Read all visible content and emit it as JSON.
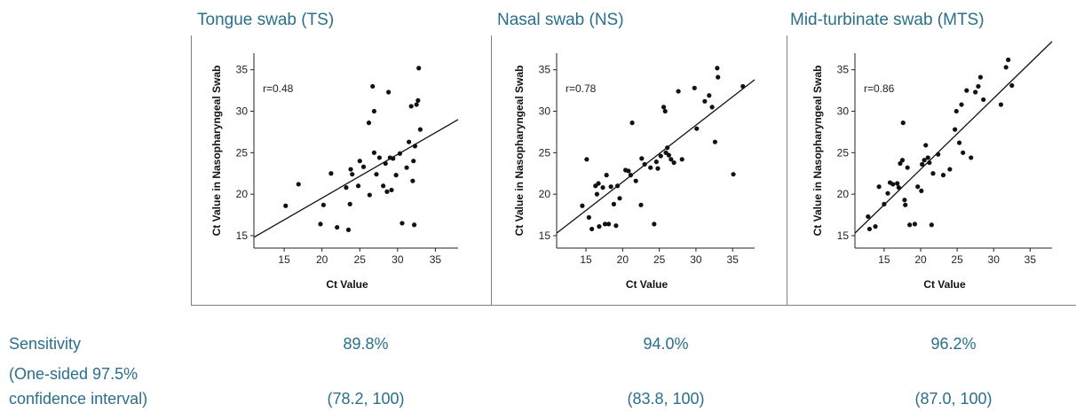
{
  "panels": [
    {
      "title": "Tongue swab (TS)"
    },
    {
      "title": "Nasal swab (NS)"
    },
    {
      "title": "Mid-turbinate swab (MTS)"
    }
  ],
  "rows": {
    "sensitivity_label": "Sensitivity",
    "ci_label_line1": "(One-sided 97.5%",
    "ci_label_line2": "confidence interval)"
  },
  "stats": [
    {
      "sensitivity": "89.8%",
      "ci": "(78.2, 100)"
    },
    {
      "sensitivity": "94.0%",
      "ci": "(83.8, 100)"
    },
    {
      "sensitivity": "96.2%",
      "ci": "(87.0, 100)"
    }
  ],
  "chart_data": [
    {
      "type": "scatter",
      "title": "Tongue swab (TS)",
      "xlabel": "Ct Value",
      "ylabel": "Ct Value in Nasopharyngeal Swab",
      "annotation": "r=0.48",
      "xlim": [
        11,
        38
      ],
      "ylim": [
        13.5,
        37
      ],
      "xticks": [
        15,
        20,
        25,
        30,
        35
      ],
      "yticks": [
        15,
        20,
        25,
        30,
        35
      ],
      "fit_line": [
        [
          11,
          14.8
        ],
        [
          38,
          29.0
        ]
      ],
      "points": [
        [
          15.2,
          18.6
        ],
        [
          16.9,
          21.2
        ],
        [
          19.8,
          16.4
        ],
        [
          20.2,
          18.7
        ],
        [
          21.2,
          22.5
        ],
        [
          22.0,
          16.0
        ],
        [
          23.5,
          15.7
        ],
        [
          23.2,
          20.8
        ],
        [
          23.7,
          18.8
        ],
        [
          23.8,
          23.0
        ],
        [
          24.0,
          22.4
        ],
        [
          24.8,
          21.0
        ],
        [
          25.0,
          24.0
        ],
        [
          25.5,
          23.3
        ],
        [
          26.2,
          28.6
        ],
        [
          26.3,
          19.9
        ],
        [
          26.7,
          33.0
        ],
        [
          26.9,
          30.0
        ],
        [
          26.9,
          25.0
        ],
        [
          27.2,
          22.4
        ],
        [
          27.6,
          24.4
        ],
        [
          28.1,
          21.0
        ],
        [
          28.4,
          23.7
        ],
        [
          28.6,
          20.3
        ],
        [
          28.8,
          32.3
        ],
        [
          29.0,
          24.4
        ],
        [
          29.2,
          20.5
        ],
        [
          29.4,
          24.3
        ],
        [
          29.8,
          22.3
        ],
        [
          30.3,
          24.9
        ],
        [
          30.6,
          16.5
        ],
        [
          31.2,
          23.2
        ],
        [
          31.5,
          26.3
        ],
        [
          31.8,
          30.6
        ],
        [
          32.0,
          21.6
        ],
        [
          32.1,
          24.0
        ],
        [
          32.2,
          16.3
        ],
        [
          32.3,
          25.8
        ],
        [
          32.5,
          30.8
        ],
        [
          32.7,
          31.3
        ],
        [
          32.8,
          35.2
        ],
        [
          33.0,
          27.8
        ]
      ]
    },
    {
      "type": "scatter",
      "title": "Nasal swab (NS)",
      "xlabel": "Ct Value",
      "ylabel": "Ct Value in Nasopharyngeal Swab",
      "annotation": "r=0.78",
      "xlim": [
        11,
        38
      ],
      "ylim": [
        13.5,
        37
      ],
      "xticks": [
        15,
        20,
        25,
        30,
        35
      ],
      "yticks": [
        15,
        20,
        25,
        30,
        35
      ],
      "fit_line": [
        [
          11,
          15.3
        ],
        [
          38,
          33.8
        ]
      ],
      "points": [
        [
          14.5,
          18.6
        ],
        [
          15.1,
          24.2
        ],
        [
          15.4,
          17.2
        ],
        [
          15.8,
          15.8
        ],
        [
          16.3,
          21.0
        ],
        [
          16.5,
          20.0
        ],
        [
          16.7,
          21.3
        ],
        [
          16.8,
          16.1
        ],
        [
          17.3,
          20.8
        ],
        [
          17.6,
          16.4
        ],
        [
          17.8,
          22.3
        ],
        [
          18.1,
          16.4
        ],
        [
          18.4,
          20.9
        ],
        [
          18.8,
          18.8
        ],
        [
          19.1,
          16.2
        ],
        [
          19.3,
          21.0
        ],
        [
          19.6,
          19.5
        ],
        [
          20.4,
          22.9
        ],
        [
          20.8,
          22.8
        ],
        [
          21.1,
          22.3
        ],
        [
          21.3,
          28.6
        ],
        [
          21.8,
          21.6
        ],
        [
          22.5,
          18.7
        ],
        [
          22.6,
          24.3
        ],
        [
          23.0,
          23.6
        ],
        [
          23.8,
          23.2
        ],
        [
          24.3,
          16.4
        ],
        [
          24.6,
          23.9
        ],
        [
          24.8,
          23.1
        ],
        [
          25.2,
          24.6
        ],
        [
          25.6,
          30.5
        ],
        [
          25.8,
          30.0
        ],
        [
          25.9,
          25.0
        ],
        [
          26.1,
          25.6
        ],
        [
          26.3,
          24.7
        ],
        [
          26.6,
          24.2
        ],
        [
          27.0,
          23.8
        ],
        [
          27.6,
          32.4
        ],
        [
          28.1,
          24.2
        ],
        [
          29.8,
          32.8
        ],
        [
          30.1,
          27.9
        ],
        [
          31.2,
          31.2
        ],
        [
          31.8,
          31.9
        ],
        [
          32.2,
          30.5
        ],
        [
          32.6,
          26.3
        ],
        [
          32.9,
          35.2
        ],
        [
          33.0,
          34.1
        ],
        [
          35.1,
          22.4
        ],
        [
          36.4,
          33.0
        ]
      ]
    },
    {
      "type": "scatter",
      "title": "Mid-turbinate swab (MTS)",
      "xlabel": "Ct Value",
      "ylabel": "Ct Value in Nasopharyngeal Swab",
      "annotation": "r=0.86",
      "xlim": [
        11,
        38
      ],
      "ylim": [
        13.5,
        37
      ],
      "xticks": [
        15,
        20,
        25,
        30,
        35
      ],
      "yticks": [
        15,
        20,
        25,
        30,
        35
      ],
      "fit_line": [
        [
          11,
          15.3
        ],
        [
          38,
          38.4
        ]
      ],
      "points": [
        [
          12.8,
          17.3
        ],
        [
          13.0,
          15.8
        ],
        [
          13.8,
          16.1
        ],
        [
          14.3,
          20.9
        ],
        [
          15.0,
          18.8
        ],
        [
          15.5,
          20.1
        ],
        [
          15.8,
          21.4
        ],
        [
          16.2,
          21.2
        ],
        [
          16.8,
          21.3
        ],
        [
          17.0,
          20.8
        ],
        [
          17.2,
          23.7
        ],
        [
          17.5,
          24.1
        ],
        [
          17.6,
          28.6
        ],
        [
          17.8,
          19.3
        ],
        [
          17.9,
          18.7
        ],
        [
          18.2,
          23.2
        ],
        [
          18.5,
          16.3
        ],
        [
          19.2,
          16.4
        ],
        [
          19.6,
          20.9
        ],
        [
          20.1,
          20.4
        ],
        [
          20.2,
          23.6
        ],
        [
          20.5,
          24.1
        ],
        [
          20.7,
          25.9
        ],
        [
          21.0,
          24.4
        ],
        [
          21.2,
          23.8
        ],
        [
          21.5,
          16.3
        ],
        [
          21.7,
          22.5
        ],
        [
          22.4,
          24.8
        ],
        [
          23.1,
          22.3
        ],
        [
          24.0,
          23.0
        ],
        [
          24.7,
          27.8
        ],
        [
          24.9,
          30.0
        ],
        [
          25.3,
          26.2
        ],
        [
          25.6,
          30.8
        ],
        [
          25.8,
          25.0
        ],
        [
          26.3,
          32.5
        ],
        [
          26.9,
          24.4
        ],
        [
          27.5,
          32.3
        ],
        [
          27.9,
          33.0
        ],
        [
          28.2,
          34.1
        ],
        [
          28.6,
          31.4
        ],
        [
          31.0,
          30.8
        ],
        [
          31.7,
          35.3
        ],
        [
          32.0,
          36.2
        ],
        [
          32.5,
          33.1
        ]
      ]
    }
  ]
}
